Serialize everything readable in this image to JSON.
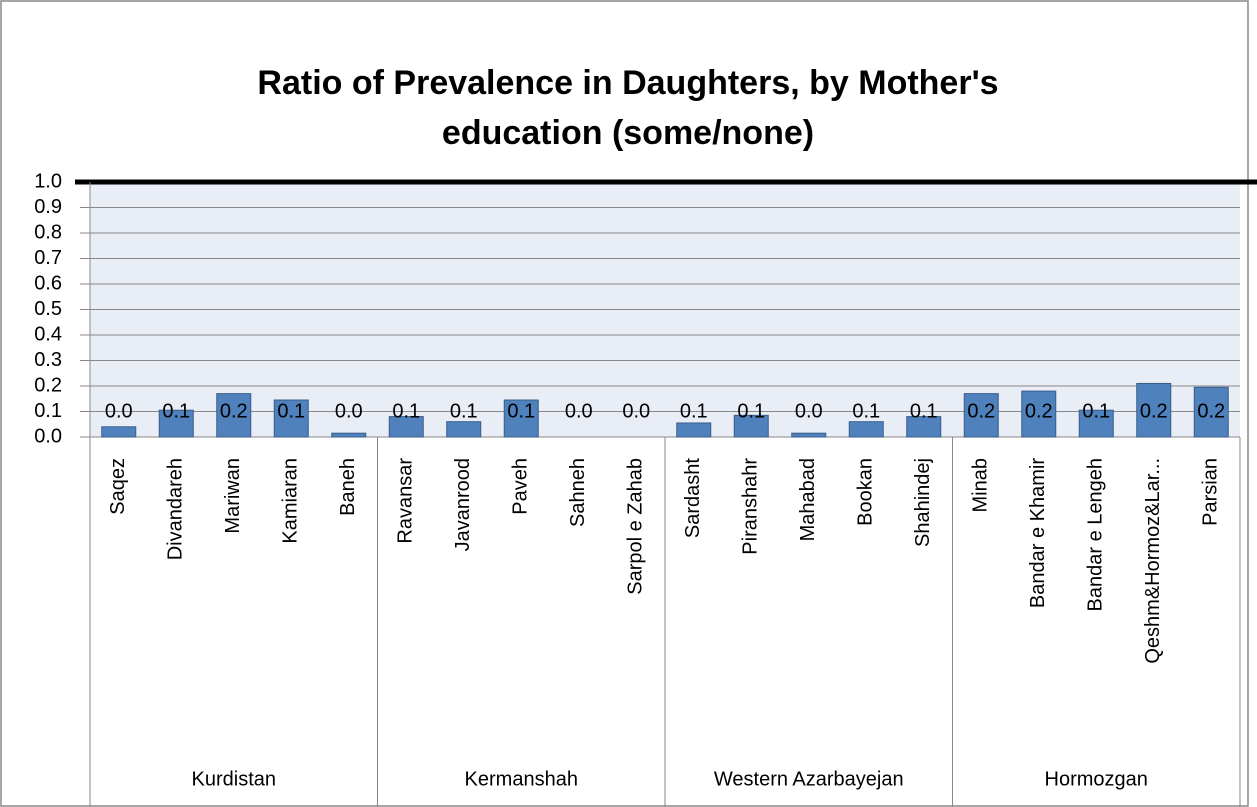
{
  "chart_data": {
    "type": "bar",
    "title": [
      "Ratio of Prevalence in Daughters, by Mother's",
      "education (some/none)"
    ],
    "categories": [
      "Saqez",
      "Divandareh",
      "Mariwan",
      "Kamiaran",
      "Baneh",
      "Ravansar",
      "Javanrood",
      "Paveh",
      "Sahneh",
      "Sarpol e Zahab",
      "Sardasht",
      "Piranshahr",
      "Mahabad",
      "Bookan",
      "Shahindej",
      "Minab",
      "Bandar e Khamir",
      "Bandar e Lengeh",
      "Qeshm&Hormoz&Lar...",
      "Parsian"
    ],
    "groups": [
      {
        "name": "Kurdistan",
        "size": 5
      },
      {
        "name": "Kermanshah",
        "size": 5
      },
      {
        "name": "Western Azarbayejan",
        "size": 5
      },
      {
        "name": "Hormozgan",
        "size": 5
      }
    ],
    "values": [
      0.04,
      0.105,
      0.17,
      0.145,
      0.015,
      0.08,
      0.06,
      0.145,
      0,
      0,
      0.055,
      0.085,
      0.015,
      0.06,
      0.08,
      0.17,
      0.18,
      0.105,
      0.21,
      0.195
    ],
    "value_labels": [
      "0.0",
      "0.1",
      "0.2",
      "0.1",
      "0.0",
      "0.1",
      "0.1",
      "0.1",
      "0.0",
      "0.0",
      "0.1",
      "0.1",
      "0.0",
      "0.1",
      "0.1",
      "0.2",
      "0.2",
      "0.1",
      "0.2",
      "0.2"
    ],
    "color": "#4f81bd",
    "ylim": [
      0,
      1
    ],
    "yticks": [
      {
        "value": 0,
        "label": "0.0"
      },
      {
        "value": 0.1,
        "label": "0.1"
      },
      {
        "value": 0.2,
        "label": "0.2"
      },
      {
        "value": 0.3,
        "label": "0.3"
      },
      {
        "value": 0.4,
        "label": "0.4"
      },
      {
        "value": 0.5,
        "label": "0.5"
      },
      {
        "value": 0.6,
        "label": "0.6"
      },
      {
        "value": 0.7,
        "label": "0.7"
      },
      {
        "value": 0.8,
        "label": "0.8"
      },
      {
        "value": 0.9,
        "label": "0.9"
      },
      {
        "value": 1,
        "label": "1.0"
      }
    ],
    "grid": true
  }
}
